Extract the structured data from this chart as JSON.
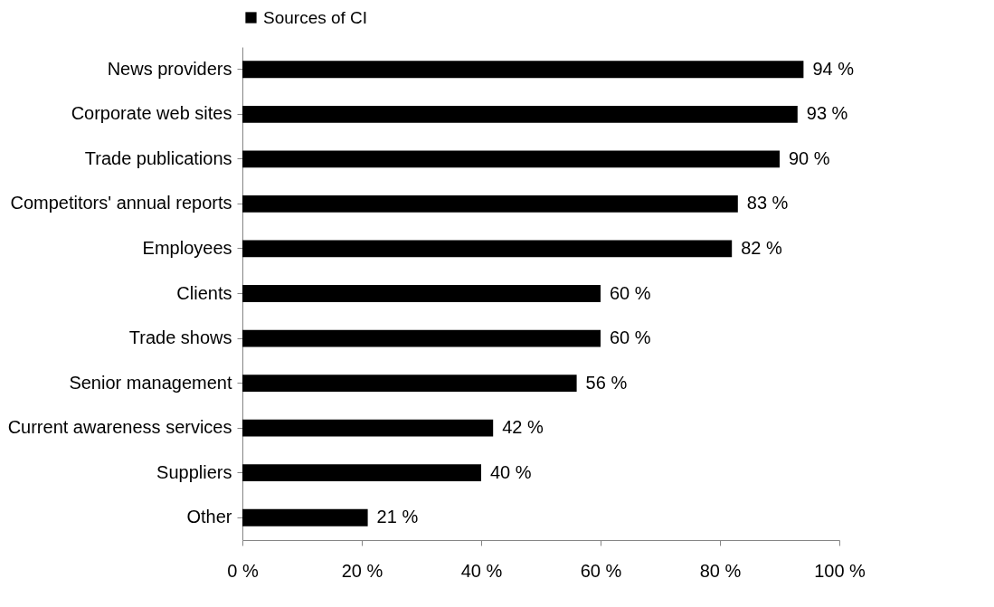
{
  "chart_data": {
    "type": "bar",
    "orientation": "horizontal",
    "categories": [
      "News providers",
      "Corporate web sites",
      "Trade publications",
      "Competitors' annual reports",
      "Employees",
      "Clients",
      "Trade shows",
      "Senior management",
      "Current awareness services",
      "Suppliers",
      "Other"
    ],
    "series": [
      {
        "name": "Sources of CI",
        "color": "#000000",
        "values": [
          94,
          93,
          90,
          83,
          82,
          60,
          60,
          56,
          42,
          40,
          21
        ],
        "value_labels": [
          "94 %",
          "93 %",
          "90 %",
          "83 %",
          "82 %",
          "60 %",
          "60 %",
          "56 %",
          "42 %",
          "40 %",
          "21 %"
        ]
      }
    ],
    "xlim": [
      0,
      100
    ],
    "xticks": [
      {
        "value": 0,
        "label": "0 %"
      },
      {
        "value": 20,
        "label": "20 %"
      },
      {
        "value": 40,
        "label": "40 %"
      },
      {
        "value": 60,
        "label": "60 %"
      },
      {
        "value": 80,
        "label": "80 %"
      },
      {
        "value": 100,
        "label": "100 %"
      }
    ],
    "grid": false,
    "legend": "top"
  }
}
